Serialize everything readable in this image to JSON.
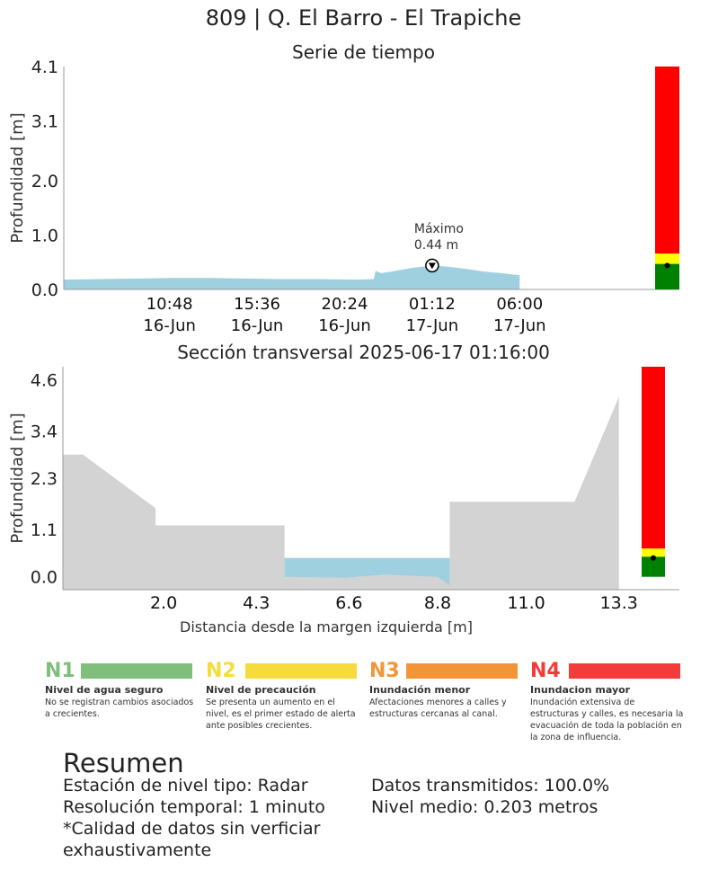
{
  "titles": {
    "main": "809 | Q. El Barro - El Trapiche",
    "time_series": "Serie de tiempo",
    "cross_section": "Sección transversal 2025-06-17 01:16:00"
  },
  "colors": {
    "water": "#9ed0e0",
    "terrain": "#d3d3d3",
    "alert_green": "#008000",
    "alert_yellow": "#ffff00",
    "alert_red": "#ff0000"
  },
  "chart_data": [
    {
      "type": "area",
      "name": "time-series",
      "ylabel": "Profundidad [m]",
      "ylim": [
        0,
        4.1
      ],
      "yticks": [
        "0.0",
        "1.0",
        "2.0",
        "3.1",
        "4.1"
      ],
      "ytick_values": [
        0,
        1.0,
        2.0,
        3.1,
        4.1
      ],
      "xlim_hours": [
        0,
        31
      ],
      "xticks": [
        {
          "hour": 5.8,
          "time": "10:48",
          "date": "16-Jun"
        },
        {
          "hour": 10.6,
          "time": "15:36",
          "date": "16-Jun"
        },
        {
          "hour": 15.4,
          "time": "20:24",
          "date": "16-Jun"
        },
        {
          "hour": 20.2,
          "time": "01:12",
          "date": "17-Jun"
        },
        {
          "hour": 25.0,
          "time": "06:00",
          "date": "17-Jun"
        }
      ],
      "series": [
        {
          "x": [
            0,
            2,
            4,
            6,
            8,
            10,
            12,
            14,
            16,
            17,
            17.1,
            17.4,
            18,
            19,
            20.2,
            21,
            22,
            23,
            24,
            25
          ],
          "y": [
            0.18,
            0.19,
            0.2,
            0.21,
            0.21,
            0.2,
            0.19,
            0.19,
            0.18,
            0.19,
            0.34,
            0.3,
            0.33,
            0.39,
            0.44,
            0.42,
            0.38,
            0.33,
            0.3,
            0.26
          ]
        }
      ],
      "max_marker": {
        "x": 20.2,
        "y": 0.44,
        "label": "Máximo",
        "value_label": "0.44 m"
      },
      "alert_bar": {
        "green_top": 0.47,
        "yellow_top": 0.66,
        "red_top": 4.1,
        "current_level": 0.44
      }
    },
    {
      "type": "area",
      "name": "cross-section",
      "xlabel": "Distancia desde la margen izquierda [m]",
      "ylabel": "Profundidad [m]",
      "xlim": [
        -0.5,
        14.8
      ],
      "ylim": [
        -0.3,
        4.9
      ],
      "xticks": [
        "2.0",
        "4.3",
        "6.6",
        "8.8",
        "11.0",
        "13.3"
      ],
      "xtick_values": [
        2.0,
        4.3,
        6.6,
        8.8,
        11.0,
        13.3
      ],
      "yticks": [
        "0.0",
        "1.1",
        "2.3",
        "3.4",
        "4.6"
      ],
      "ytick_values": [
        0,
        1.1,
        2.3,
        3.4,
        4.6
      ],
      "terrain": {
        "x": [
          -0.5,
          0.0,
          1.8,
          1.8,
          5.0,
          5.0,
          6.5,
          7.5,
          8.8,
          9.1,
          9.1,
          12.2,
          13.3
        ],
        "y": [
          2.85,
          2.85,
          1.6,
          1.2,
          1.2,
          0.0,
          -0.02,
          0.05,
          0.0,
          -0.2,
          1.75,
          1.75,
          4.2
        ]
      },
      "water_level": 0.44,
      "water_range": [
        5.0,
        9.1
      ],
      "alert_bar": {
        "green_top": 0.47,
        "yellow_top": 0.66,
        "red_top": 4.9,
        "current_level": 0.44
      }
    }
  ],
  "legend": [
    {
      "code": "N1",
      "name": "Nivel de agua seguro",
      "desc": "No se registran cambios asociados a crecientes.",
      "color": "#7fbf7b"
    },
    {
      "code": "N2",
      "name": "Nivel de precaución",
      "desc": "Se presenta un aumento en el nivel, es el primer estado de alerta ante posibles crecientes.",
      "color": "#f5dc3c"
    },
    {
      "code": "N3",
      "name": "Inundación menor",
      "desc": "Afectaciones menores a calles y estructuras cercanas al canal.",
      "color": "#f39536"
    },
    {
      "code": "N4",
      "name": "Inundacion mayor",
      "desc": "Inundación extensiva de estructuras y calles, es necesaria la evacuación de toda la población en la zona de influencia.",
      "color": "#f43b3b"
    }
  ],
  "summary": {
    "title": "Resumen",
    "station": "Estación de nivel tipo: Radar",
    "resolution": "Resolución temporal: 1 minuto",
    "quality_line1": "*Calidad de datos sin verficiar",
    "quality_line2": "exhaustivamente",
    "transmitted": "Datos transmitidos: 100.0%",
    "mean_level": "Nivel medio: 0.203 metros"
  }
}
